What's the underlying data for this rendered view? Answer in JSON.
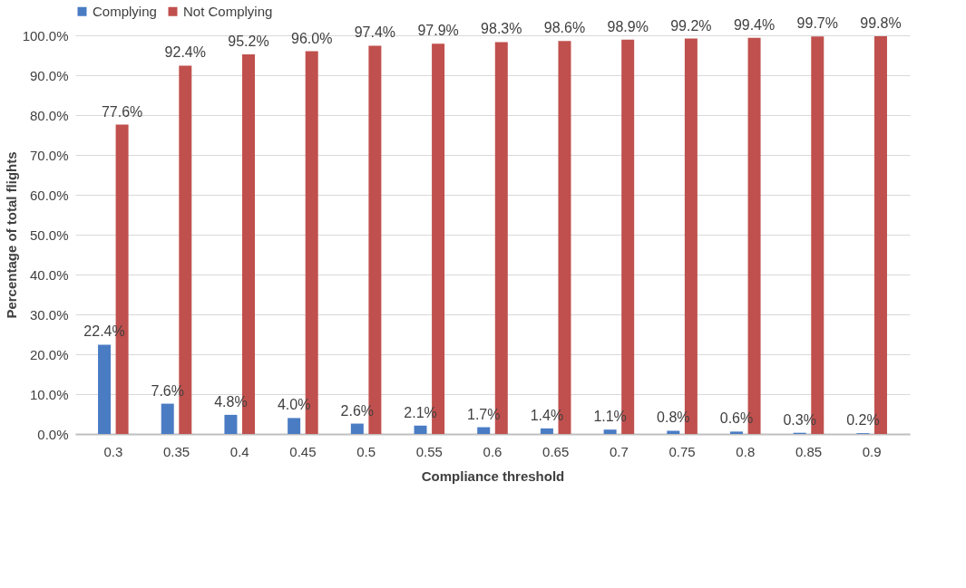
{
  "chart_data": {
    "type": "bar",
    "xlabel": "Compliance threshold",
    "ylabel": "Percentage of total flights",
    "categories": [
      "0.3",
      "0.35",
      "0.4",
      "0.45",
      "0.5",
      "0.55",
      "0.6",
      "0.65",
      "0.7",
      "0.75",
      "0.8",
      "0.85",
      "0.9"
    ],
    "series": [
      {
        "name": "Complying",
        "color": "#4a7cc4",
        "values": [
          22.4,
          7.6,
          4.8,
          4.0,
          2.6,
          2.1,
          1.7,
          1.4,
          1.1,
          0.8,
          0.6,
          0.3,
          0.2
        ],
        "value_labels": [
          "22.4%",
          "7.6%",
          "4.8%",
          "4.0%",
          "2.6%",
          "2.1%",
          "1.7%",
          "1.4%",
          "1.1%",
          "0.8%",
          "0.6%",
          "0.3%",
          "0.2%"
        ]
      },
      {
        "name": "Not Complying",
        "color": "#c0504d",
        "values": [
          77.6,
          92.4,
          95.2,
          96.0,
          97.4,
          97.9,
          98.3,
          98.6,
          98.9,
          99.2,
          99.4,
          99.7,
          99.8
        ],
        "value_labels": [
          "77.6%",
          "92.4%",
          "95.2%",
          "96.0%",
          "97.4%",
          "97.9%",
          "98.3%",
          "98.6%",
          "98.9%",
          "99.2%",
          "99.4%",
          "99.7%",
          "99.8%"
        ]
      }
    ],
    "ylim": [
      0,
      100
    ],
    "yticks": [
      {
        "value": 0,
        "label": "0.0%"
      },
      {
        "value": 10,
        "label": "10.0%"
      },
      {
        "value": 20,
        "label": "20.0%"
      },
      {
        "value": 30,
        "label": "30.0%"
      },
      {
        "value": 40,
        "label": "40.0%"
      },
      {
        "value": 50,
        "label": "50.0%"
      },
      {
        "value": 60,
        "label": "60.0%"
      },
      {
        "value": 70,
        "label": "70.0%"
      },
      {
        "value": 80,
        "label": "80.0%"
      },
      {
        "value": 90,
        "label": "90.0%"
      },
      {
        "value": 100,
        "label": "100.0%"
      }
    ],
    "grid": "y",
    "legend": "top"
  }
}
